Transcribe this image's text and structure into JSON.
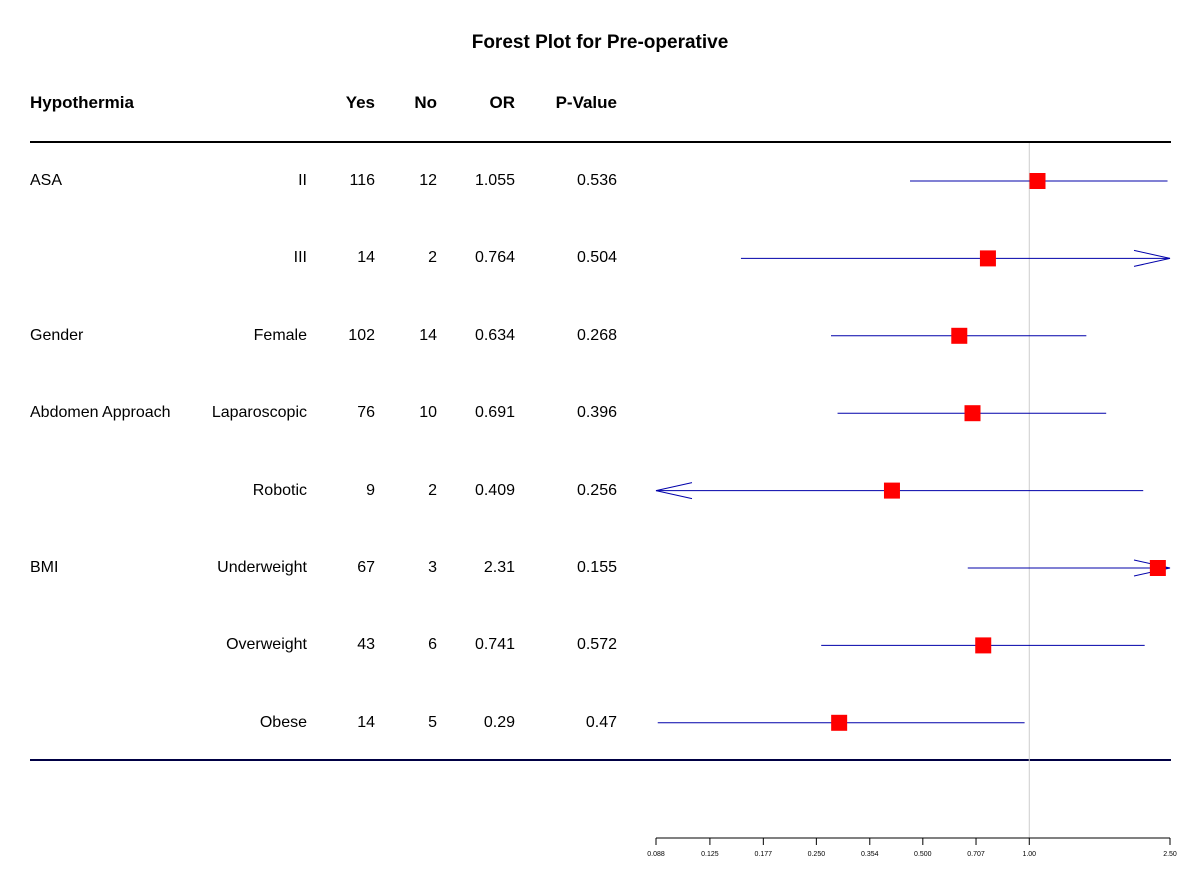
{
  "title": "Forest Plot for Pre-operative",
  "columns": {
    "group": "Hypothermia",
    "yes": "Yes",
    "no": "No",
    "or": "OR",
    "p": "P-Value"
  },
  "rows": [
    {
      "group": "ASA",
      "level": "II",
      "yes": "116",
      "no": "12",
      "or": "1.055",
      "p": "0.536"
    },
    {
      "group": "",
      "level": "III",
      "yes": "14",
      "no": "2",
      "or": "0.764",
      "p": "0.504"
    },
    {
      "group": "Gender",
      "level": "Female",
      "yes": "102",
      "no": "14",
      "or": "0.634",
      "p": "0.268"
    },
    {
      "group": "Abdomen Approach",
      "level": "Laparoscopic",
      "yes": "76",
      "no": "10",
      "or": "0.691",
      "p": "0.396"
    },
    {
      "group": "",
      "level": "Robotic",
      "yes": "9",
      "no": "2",
      "or": "0.409",
      "p": "0.256"
    },
    {
      "group": "BMI",
      "level": "Underweight",
      "yes": "67",
      "no": "3",
      "or": "2.31",
      "p": "0.155"
    },
    {
      "group": "",
      "level": "Overweight",
      "yes": "43",
      "no": "6",
      "or": "0.741",
      "p": "0.572"
    },
    {
      "group": "",
      "level": "Obese",
      "yes": "14",
      "no": "5",
      "or": "0.29",
      "p": "0.47"
    }
  ],
  "chart_data": {
    "type": "forest",
    "title": "Forest Plot for Pre-operative",
    "x_scale": "log",
    "xlim": [
      0.088,
      2.5
    ],
    "reference_line": 1.0,
    "ticks": [
      0.088,
      0.125,
      0.177,
      0.25,
      0.354,
      0.5,
      0.707,
      1.0,
      2.5
    ],
    "tick_labels": [
      "0.088",
      "0.125",
      "0.177",
      "0.250",
      "0.354",
      "0.500",
      "0.707",
      "1.00",
      "2.50"
    ],
    "points": [
      {
        "or": 1.055,
        "lower": 0.46,
        "upper": 2.46,
        "arrow_left": false,
        "arrow_right": false
      },
      {
        "or": 0.764,
        "lower": 0.153,
        "upper": 2.5,
        "arrow_left": false,
        "arrow_right": true
      },
      {
        "or": 0.634,
        "lower": 0.275,
        "upper": 1.45,
        "arrow_left": false,
        "arrow_right": false
      },
      {
        "or": 0.691,
        "lower": 0.287,
        "upper": 1.65,
        "arrow_left": false,
        "arrow_right": false
      },
      {
        "or": 0.409,
        "lower": 0.088,
        "upper": 2.1,
        "arrow_left": true,
        "arrow_right": false
      },
      {
        "or": 2.31,
        "lower": 0.67,
        "upper": 2.5,
        "arrow_left": false,
        "arrow_right": true
      },
      {
        "or": 0.741,
        "lower": 0.258,
        "upper": 2.12,
        "arrow_left": false,
        "arrow_right": false
      },
      {
        "or": 0.29,
        "lower": 0.089,
        "upper": 0.97,
        "arrow_left": false,
        "arrow_right": false
      }
    ],
    "colors": {
      "point": "#ff0000",
      "ci_line": "#0000aa",
      "ref_line": "#cccccc",
      "rule": "#000000",
      "bottom_rule": "#000044"
    }
  }
}
